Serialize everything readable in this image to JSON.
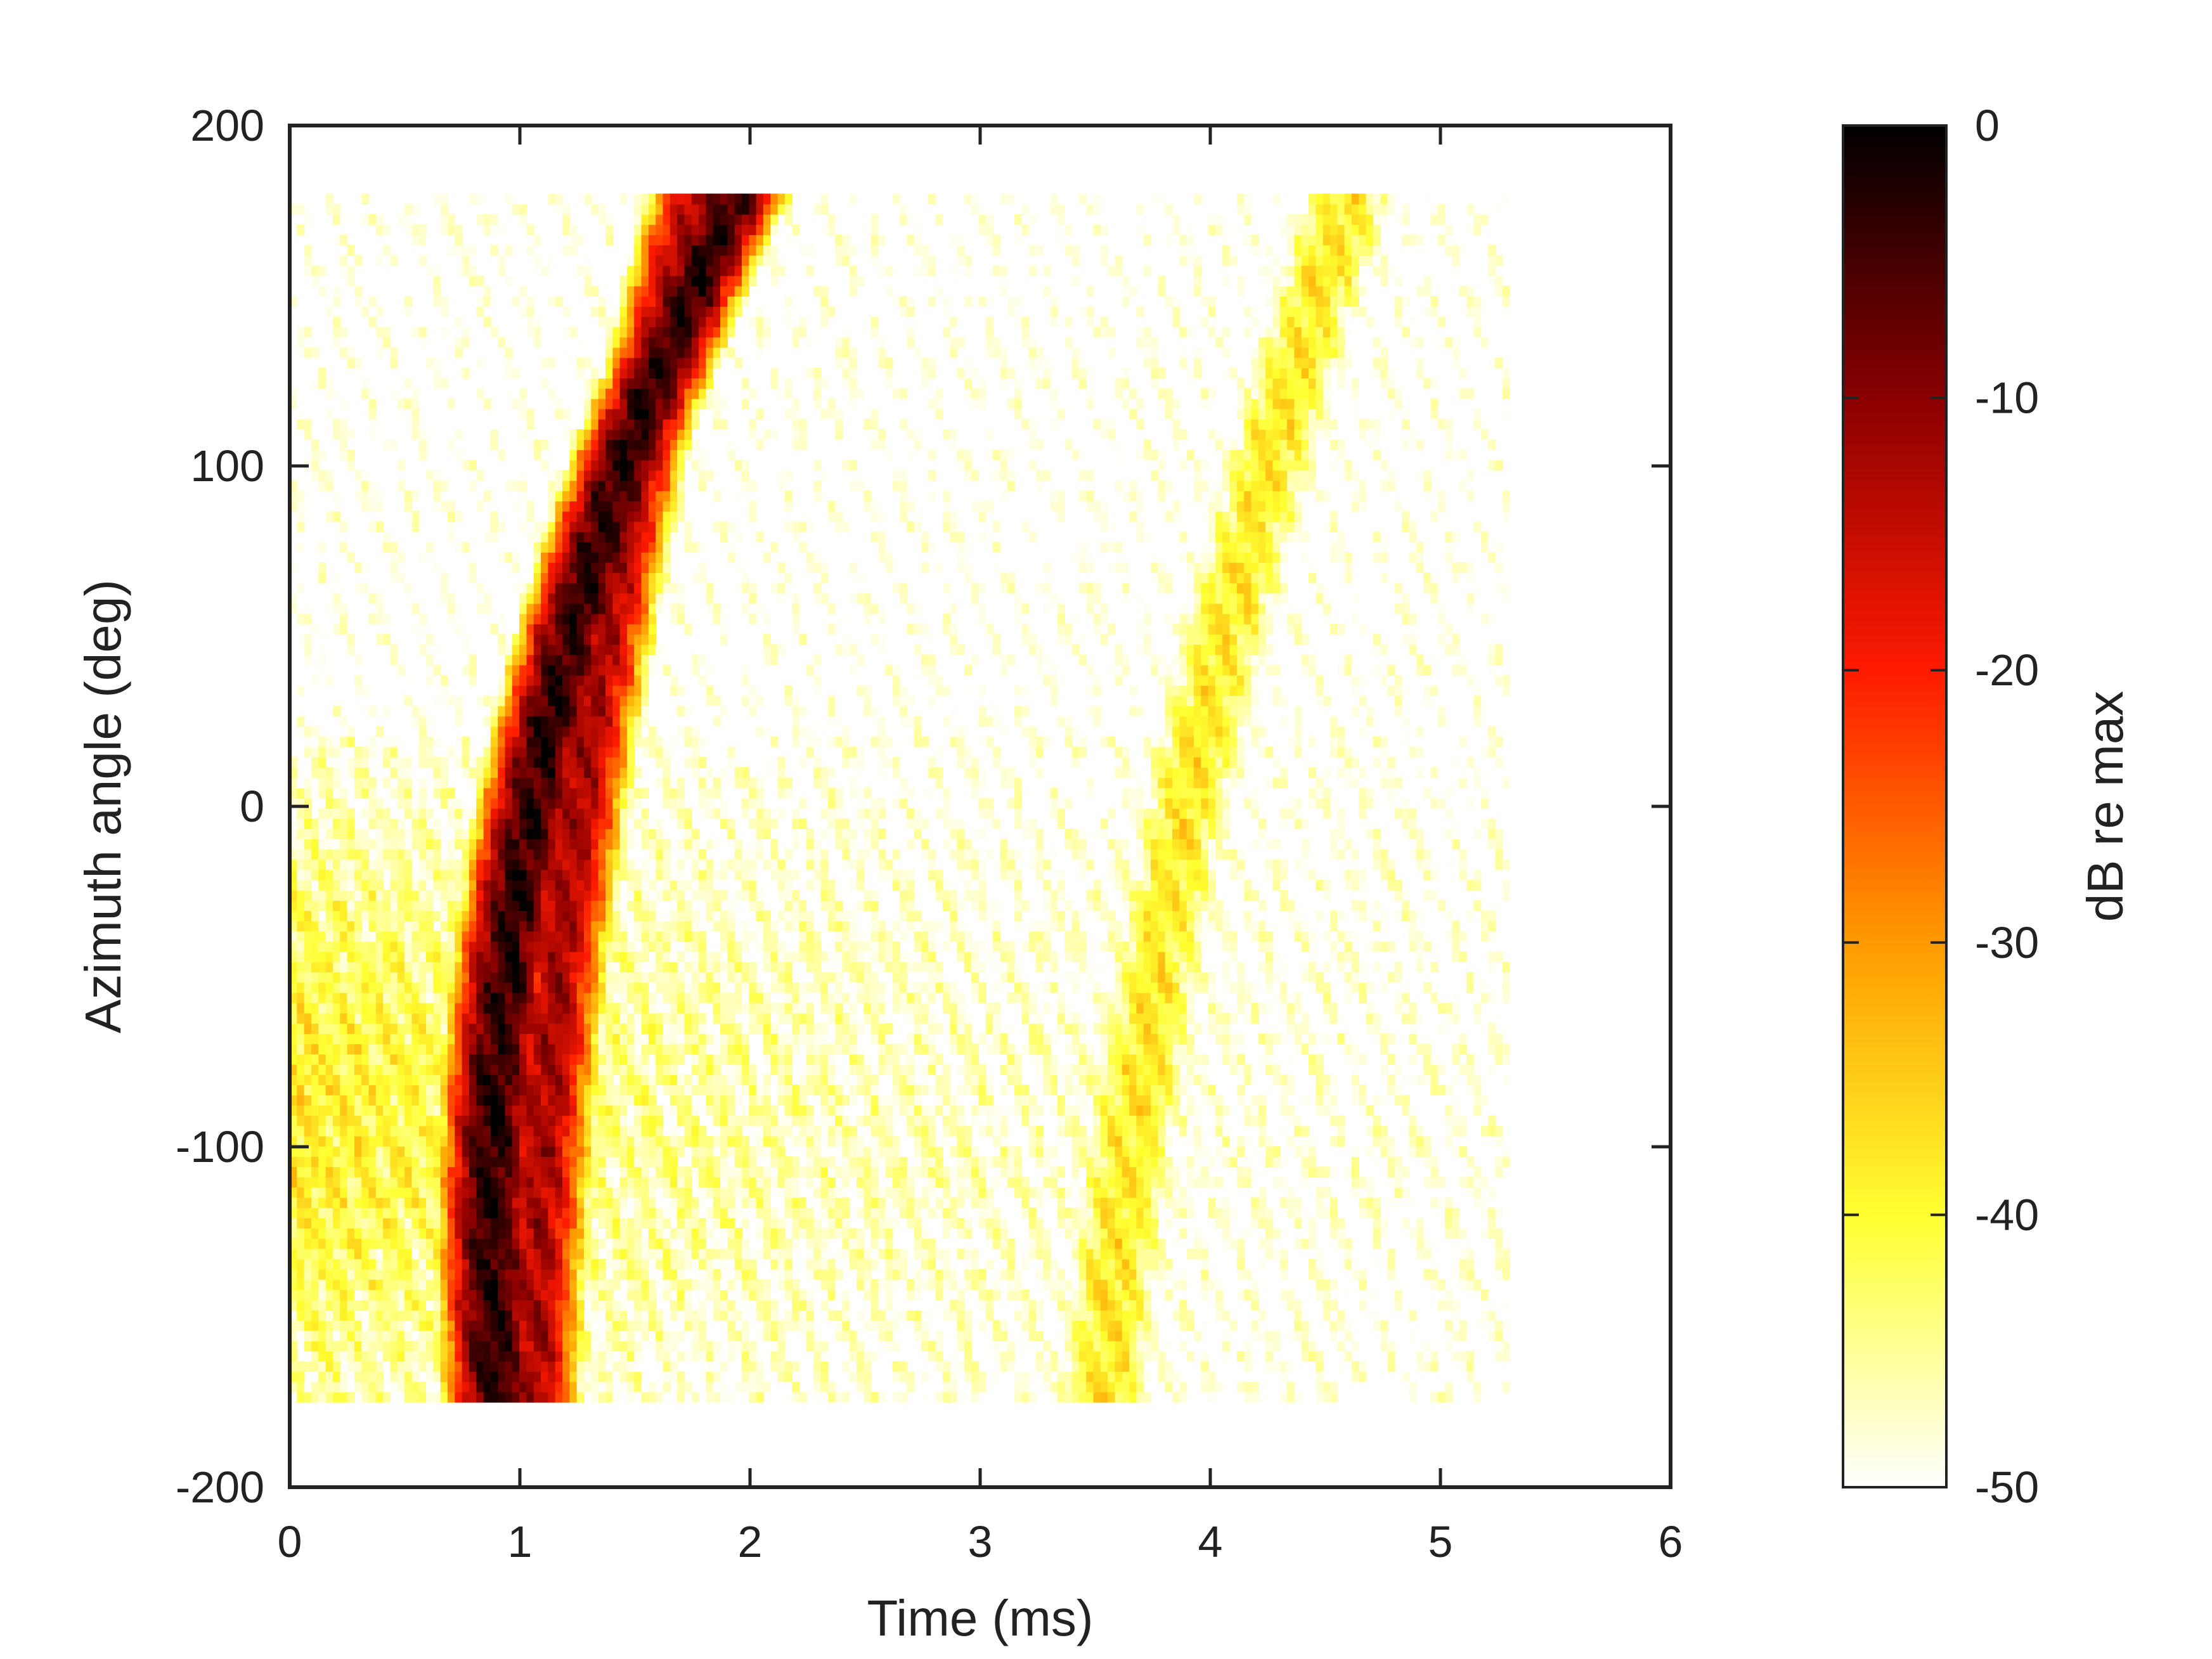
{
  "chart_data": {
    "type": "heatmap",
    "xlabel": "Time (ms)",
    "ylabel": "Azimuth angle (deg)",
    "xlim": [
      0,
      6
    ],
    "ylim": [
      -200,
      200
    ],
    "x_ticks": [
      0,
      1,
      2,
      3,
      4,
      5,
      6
    ],
    "y_ticks": [
      -200,
      -100,
      0,
      100,
      200
    ],
    "data_extent": {
      "x": [
        0,
        5.3
      ],
      "y": [
        -175,
        180
      ]
    },
    "colorbar": {
      "label": "dB re max",
      "range": [
        -50,
        0
      ],
      "ticks": [
        0,
        -10,
        -20,
        -30,
        -40,
        -50
      ],
      "colormap": "hot",
      "colors": [
        "#ffffff",
        "#ffff30",
        "#ff9a00",
        "#ff1a00",
        "#8a0000",
        "#000000"
      ]
    },
    "features": [
      {
        "description": "primary arrival ridge",
        "time_ms_at_0deg": 1.05,
        "time_ms_at_minus100deg": 0.88,
        "time_ms_at_100deg": 1.45,
        "level_db": -3
      },
      {
        "description": "secondary ridge",
        "time_ms_at_0deg": 1.25,
        "time_ms_at_minus100deg": 1.1,
        "time_ms_at_100deg": 1.5,
        "level_db": -12
      },
      {
        "description": "late arrival band",
        "time_ms_at_0deg": 3.9,
        "time_ms_at_minus100deg": 3.65,
        "time_ms_at_100deg": 4.25,
        "level_db": -38
      }
    ]
  }
}
